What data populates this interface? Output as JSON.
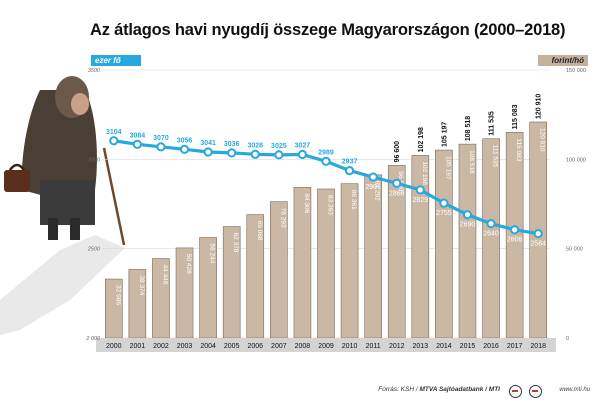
{
  "title": "Az átlagos havi nyugdíj összege Magyarországon (2000–2018)",
  "footer": {
    "source_prefix": "Forrás: KSH /",
    "source_bold": "MTVA Sajtóadatbank / MTI",
    "website": "www.mti.hu"
  },
  "colors": {
    "bar_fill": "#cab8a5",
    "bar_stroke": "#7a6a5a",
    "line": "#29a8df",
    "point_fill": "#ffffff",
    "grid": "#d9d9d9",
    "axis_band": "#d4d4d4"
  },
  "chart_data": {
    "type": "bar",
    "categories": [
      "2000",
      "2001",
      "2002",
      "2003",
      "2004",
      "2005",
      "2006",
      "2007",
      "2008",
      "2009",
      "2010",
      "2011",
      "2012",
      "2013",
      "2014",
      "2015",
      "2016",
      "2017",
      "2018"
    ],
    "series": [
      {
        "name": "forint/hó",
        "type": "bar",
        "axis": "right",
        "values": [
          32986,
          38374,
          44446,
          50428,
          56244,
          62378,
          69068,
          76293,
          84306,
          83393,
          86361,
          91292,
          96600,
          102198,
          105197,
          108518,
          111535,
          115083,
          120910
        ],
        "labels": [
          "32 986",
          "38 374",
          "44 446",
          "50 428",
          "56 244",
          "62 378",
          "69 068",
          "76 293",
          "84 306",
          "83 393",
          "86 361",
          "91 292",
          "96 600",
          "102 198",
          "105 197",
          "108 518",
          "111 535",
          "115 083",
          "120 910"
        ]
      },
      {
        "name": "ezer fő",
        "type": "line",
        "axis": "left",
        "values": [
          3104,
          3084,
          3070,
          3056,
          3041,
          3036,
          3028,
          3025,
          3027,
          2989,
          2937,
          2901,
          2866,
          2829,
          2755,
          2690,
          2640,
          2606,
          2584
        ]
      }
    ],
    "y_left": {
      "label": "ezer fő",
      "range": [
        2000,
        3500
      ],
      "ticks": [
        2000,
        2500,
        3000,
        3500
      ],
      "tick_labels": [
        "2 000",
        "2500",
        "3000",
        "3500"
      ]
    },
    "y_right": {
      "label": "forint/hó",
      "range": [
        0,
        150000
      ],
      "ticks": [
        0,
        50000,
        100000,
        150000
      ],
      "tick_labels": [
        "0",
        "50 000",
        "100 000",
        "150 000"
      ]
    },
    "grid": true,
    "legend": "none"
  }
}
